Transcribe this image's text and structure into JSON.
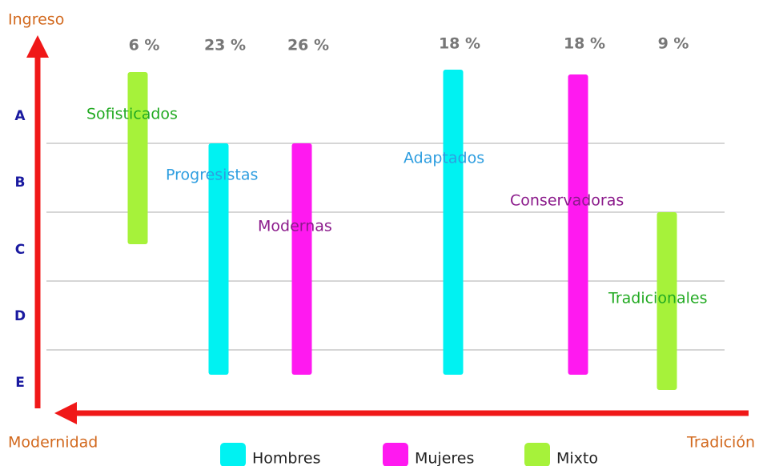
{
  "axes": {
    "y_label": "Ingreso",
    "x_left": "Modernidad",
    "x_right": "Tradición",
    "levels": [
      "A",
      "B",
      "C",
      "D",
      "E"
    ]
  },
  "segments": [
    {
      "name": "Sofisticados",
      "share": "6 %",
      "group": "Mixto"
    },
    {
      "name": "Progresistas",
      "share": "23 %",
      "group": "Hombres"
    },
    {
      "name": "Modernas",
      "share": "26 %",
      "group": "Mujeres"
    },
    {
      "name": "Adaptados",
      "share": "18 %",
      "group": "Hombres"
    },
    {
      "name": "Conservadoras",
      "share": "18 %",
      "group": "Mujeres"
    },
    {
      "name": "Tradicionales",
      "share": "9 %",
      "group": "Mixto"
    }
  ],
  "legend": [
    {
      "label": "Hombres",
      "color": "#00f2f2",
      "text_color": "#2e9ee0"
    },
    {
      "label": "Mujeres",
      "color": "#ff19f0",
      "text_color": "#8b1a8b"
    },
    {
      "label": "Mixto",
      "color": "#a6f23a",
      "text_color": "#22aa22"
    }
  ]
}
